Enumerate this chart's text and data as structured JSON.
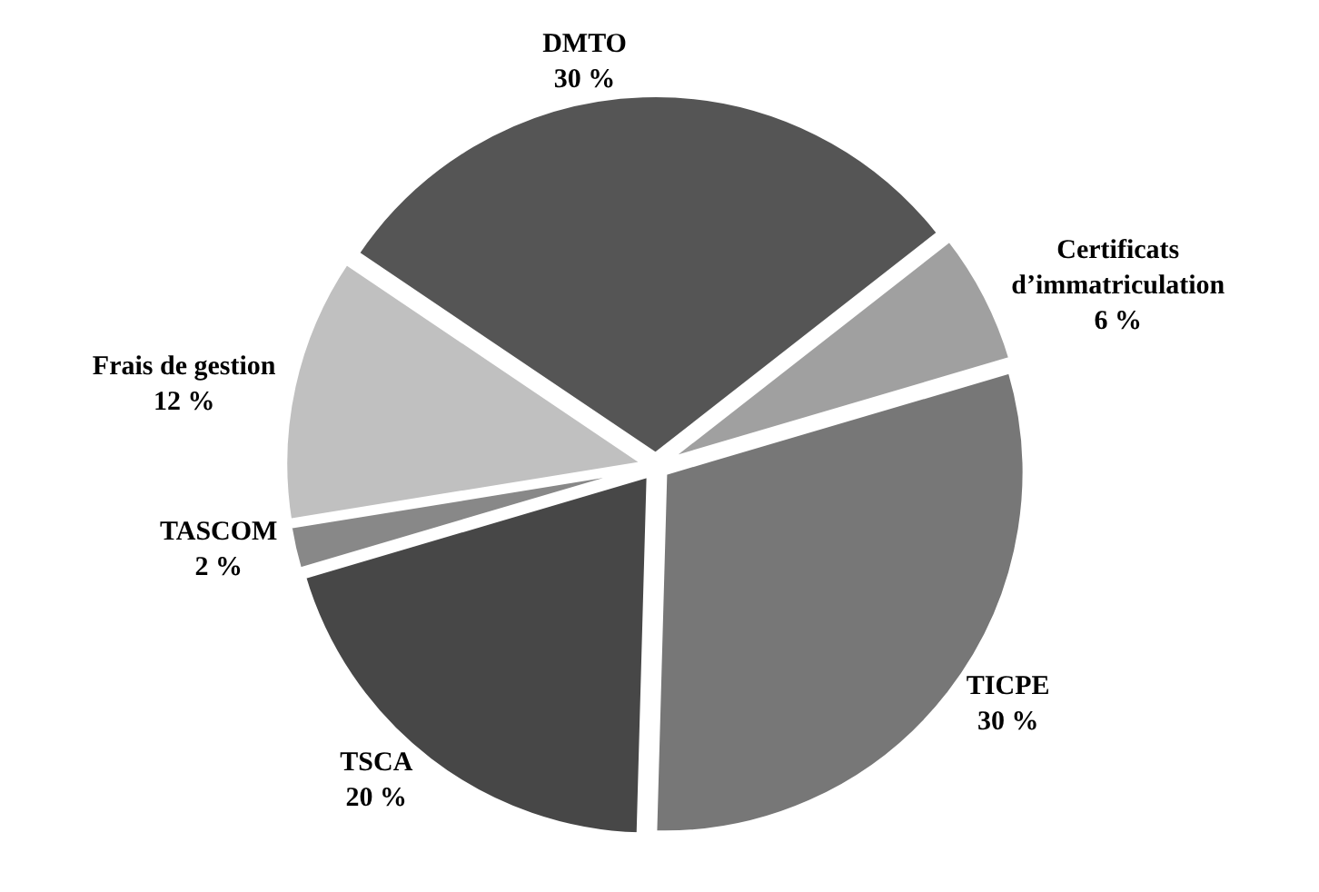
{
  "chart_data": {
    "type": "pie",
    "categories": [
      "DMTO",
      "Certificats d’immatriculation",
      "TICPE",
      "TSCA",
      "TASCOM",
      "Frais de gestion"
    ],
    "values": [
      30,
      6,
      30,
      20,
      2,
      12
    ],
    "value_labels": [
      "30 %",
      "6 %",
      "30 %",
      "20 %",
      "2 %",
      "12 %"
    ],
    "colors": [
      "#555555",
      "#a0a0a0",
      "#777777",
      "#474747",
      "#888888",
      "#c0c0c0"
    ],
    "legend": false
  }
}
